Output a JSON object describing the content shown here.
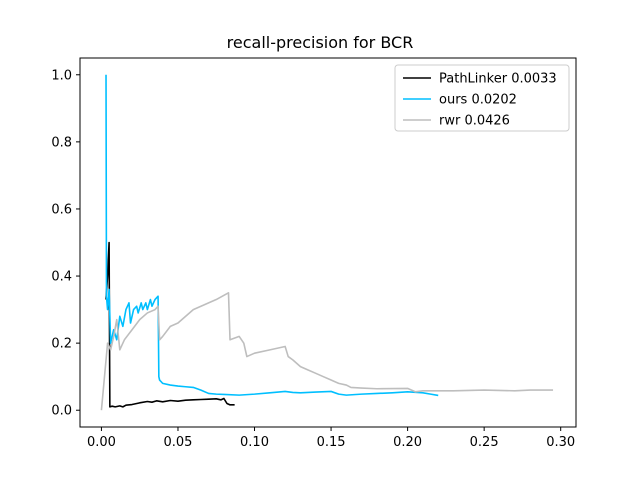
{
  "chart_data": {
    "type": "line",
    "title": "recall-precision for BCR",
    "xlabel": "",
    "ylabel": "",
    "xlim": [
      -0.014,
      0.31
    ],
    "ylim": [
      -0.05,
      1.05
    ],
    "xticks": [
      0.0,
      0.05,
      0.1,
      0.15,
      0.2,
      0.25,
      0.3
    ],
    "xtick_labels": [
      "0.00",
      "0.05",
      "0.10",
      "0.15",
      "0.20",
      "0.25",
      "0.30"
    ],
    "yticks": [
      0.0,
      0.2,
      0.4,
      0.6,
      0.8,
      1.0
    ],
    "ytick_labels": [
      "0.0",
      "0.2",
      "0.4",
      "0.6",
      "0.8",
      "1.0"
    ],
    "grid": false,
    "legend": "top-right",
    "series": [
      {
        "name": "PathLinker 0.0033",
        "color": "#000000",
        "points": [
          [
            0.003,
            0.33
          ],
          [
            0.004,
            0.4
          ],
          [
            0.005,
            0.5
          ],
          [
            0.0055,
            0.01
          ],
          [
            0.007,
            0.012
          ],
          [
            0.009,
            0.01
          ],
          [
            0.012,
            0.013
          ],
          [
            0.014,
            0.01
          ],
          [
            0.016,
            0.015
          ],
          [
            0.02,
            0.017
          ],
          [
            0.025,
            0.022
          ],
          [
            0.03,
            0.026
          ],
          [
            0.033,
            0.024
          ],
          [
            0.036,
            0.028
          ],
          [
            0.04,
            0.025
          ],
          [
            0.045,
            0.029
          ],
          [
            0.05,
            0.027
          ],
          [
            0.055,
            0.03
          ],
          [
            0.06,
            0.031
          ],
          [
            0.065,
            0.032
          ],
          [
            0.07,
            0.033
          ],
          [
            0.075,
            0.034
          ],
          [
            0.078,
            0.031
          ],
          [
            0.08,
            0.035
          ],
          [
            0.082,
            0.02
          ],
          [
            0.084,
            0.016
          ],
          [
            0.087,
            0.016
          ]
        ]
      },
      {
        "name": "ours 0.0202",
        "color": "#00bfff",
        "points": [
          [
            0.003,
            1.0
          ],
          [
            0.0033,
            0.34
          ],
          [
            0.004,
            0.3
          ],
          [
            0.005,
            0.36
          ],
          [
            0.006,
            0.2
          ],
          [
            0.008,
            0.24
          ],
          [
            0.01,
            0.21
          ],
          [
            0.012,
            0.28
          ],
          [
            0.014,
            0.25
          ],
          [
            0.016,
            0.3
          ],
          [
            0.018,
            0.32
          ],
          [
            0.019,
            0.26
          ],
          [
            0.021,
            0.3
          ],
          [
            0.023,
            0.31
          ],
          [
            0.024,
            0.29
          ],
          [
            0.026,
            0.32
          ],
          [
            0.027,
            0.3
          ],
          [
            0.029,
            0.32
          ],
          [
            0.03,
            0.3
          ],
          [
            0.032,
            0.33
          ],
          [
            0.033,
            0.31
          ],
          [
            0.035,
            0.33
          ],
          [
            0.037,
            0.34
          ],
          [
            0.0375,
            0.1
          ],
          [
            0.038,
            0.09
          ],
          [
            0.04,
            0.08
          ],
          [
            0.045,
            0.075
          ],
          [
            0.05,
            0.072
          ],
          [
            0.055,
            0.07
          ],
          [
            0.06,
            0.068
          ],
          [
            0.065,
            0.06
          ],
          [
            0.07,
            0.05
          ],
          [
            0.075,
            0.048
          ],
          [
            0.08,
            0.047
          ],
          [
            0.09,
            0.045
          ],
          [
            0.1,
            0.048
          ],
          [
            0.11,
            0.052
          ],
          [
            0.12,
            0.056
          ],
          [
            0.125,
            0.053
          ],
          [
            0.13,
            0.052
          ],
          [
            0.14,
            0.054
          ],
          [
            0.15,
            0.056
          ],
          [
            0.155,
            0.048
          ],
          [
            0.16,
            0.045
          ],
          [
            0.17,
            0.048
          ],
          [
            0.18,
            0.05
          ],
          [
            0.19,
            0.052
          ],
          [
            0.2,
            0.055
          ],
          [
            0.21,
            0.052
          ],
          [
            0.215,
            0.048
          ],
          [
            0.22,
            0.044
          ]
        ]
      },
      {
        "name": "rwr 0.0426",
        "color": "#bebebe",
        "points": [
          [
            0.0,
            0.0
          ],
          [
            0.002,
            0.1
          ],
          [
            0.004,
            0.2
          ],
          [
            0.006,
            0.18
          ],
          [
            0.008,
            0.22
          ],
          [
            0.01,
            0.27
          ],
          [
            0.012,
            0.18
          ],
          [
            0.015,
            0.21
          ],
          [
            0.02,
            0.24
          ],
          [
            0.025,
            0.27
          ],
          [
            0.03,
            0.29
          ],
          [
            0.035,
            0.3
          ],
          [
            0.037,
            0.31
          ],
          [
            0.038,
            0.21
          ],
          [
            0.04,
            0.22
          ],
          [
            0.045,
            0.25
          ],
          [
            0.05,
            0.26
          ],
          [
            0.06,
            0.3
          ],
          [
            0.07,
            0.32
          ],
          [
            0.075,
            0.33
          ],
          [
            0.083,
            0.35
          ],
          [
            0.084,
            0.21
          ],
          [
            0.09,
            0.22
          ],
          [
            0.093,
            0.2
          ],
          [
            0.095,
            0.16
          ],
          [
            0.1,
            0.17
          ],
          [
            0.11,
            0.18
          ],
          [
            0.12,
            0.19
          ],
          [
            0.122,
            0.16
          ],
          [
            0.125,
            0.15
          ],
          [
            0.13,
            0.13
          ],
          [
            0.135,
            0.12
          ],
          [
            0.14,
            0.11
          ],
          [
            0.145,
            0.1
          ],
          [
            0.15,
            0.09
          ],
          [
            0.155,
            0.08
          ],
          [
            0.16,
            0.075
          ],
          [
            0.163,
            0.068
          ],
          [
            0.17,
            0.066
          ],
          [
            0.18,
            0.064
          ],
          [
            0.2,
            0.065
          ],
          [
            0.205,
            0.055
          ],
          [
            0.21,
            0.058
          ],
          [
            0.23,
            0.058
          ],
          [
            0.25,
            0.06
          ],
          [
            0.27,
            0.058
          ],
          [
            0.28,
            0.06
          ],
          [
            0.295,
            0.06
          ]
        ]
      }
    ]
  }
}
